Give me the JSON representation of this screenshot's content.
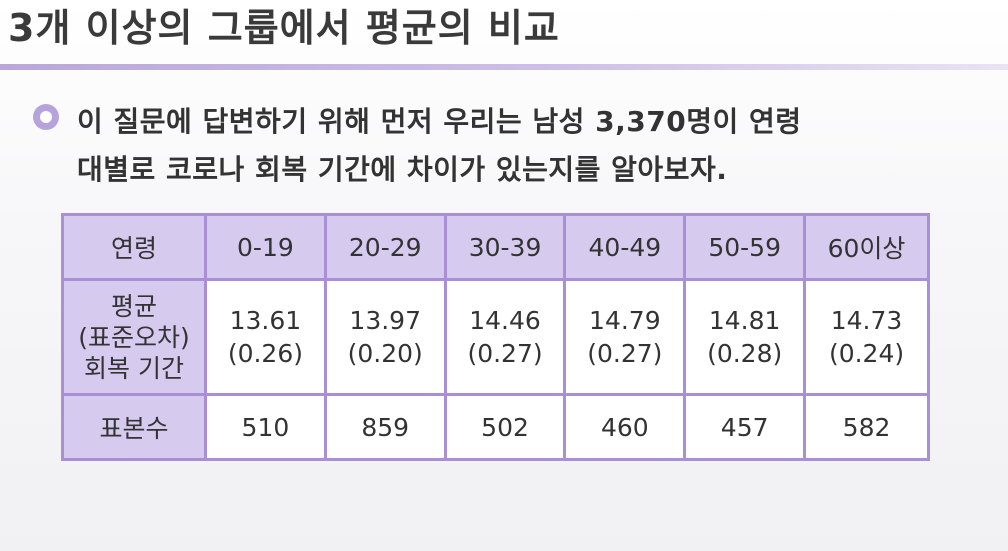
{
  "title": "3개 이상의 그룹에서 평균의 비교",
  "bullet": {
    "icon": "circle-bullet-icon",
    "accent_color": "#b7a3dc",
    "line1": "이 질문에 답변하기 위해 먼저 우리는 남성 3,370명이 연령",
    "line2": "대별로 코로나 회복 기간에 차이가 있는지를 알아보자."
  },
  "table": {
    "header_label": "연령",
    "age_groups": [
      "0-19",
      "20-29",
      "30-39",
      "40-49",
      "50-59",
      "60이상"
    ],
    "mean_label_lines": [
      "평균",
      "(표준오차)",
      "회복 기간"
    ],
    "means": [
      "13.61",
      "13.97",
      "14.46",
      "14.79",
      "14.81",
      "14.73"
    ],
    "std_errors": [
      "(0.26)",
      "(0.20)",
      "(0.27)",
      "(0.27)",
      "(0.28)",
      "(0.24)"
    ],
    "sample_label": "표본수",
    "sample_sizes": [
      "510",
      "859",
      "502",
      "460",
      "457",
      "582"
    ],
    "header_color": "#d7caef",
    "border_color": "#a98fd6"
  }
}
